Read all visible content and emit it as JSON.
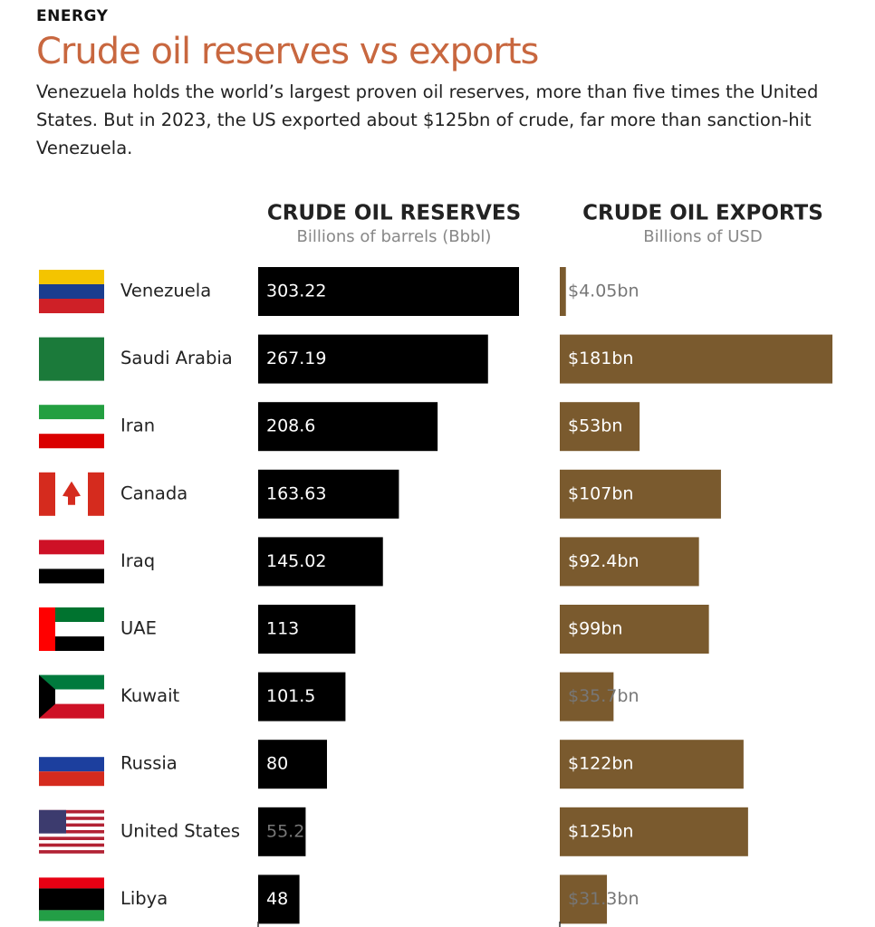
{
  "header": {
    "kicker": "ENERGY",
    "title": "Crude oil reserves vs exports",
    "subtitle": "Venezuela holds the world’s largest proven oil reserves, more than five times the United States. But in 2023, the US exported about $125bn of crude, far more than sanction-hit Venezuela."
  },
  "chart_data": {
    "type": "bar",
    "categories": [
      "Venezuela",
      "Saudi Arabia",
      "Iran",
      "Canada",
      "Iraq",
      "UAE",
      "Kuwait",
      "Russia",
      "United States",
      "Libya"
    ],
    "series": [
      {
        "name": "CRUDE OIL RESERVES",
        "unit": "Billions of barrels (Bbbl)",
        "color": "#000000",
        "values": [
          303.22,
          267.19,
          208.6,
          163.63,
          145.02,
          113,
          101.5,
          80,
          55.2,
          48
        ]
      },
      {
        "name": "CRUDE OIL EXPORTS",
        "unit": "Billions of USD",
        "color": "#7a5a2e",
        "values": [
          4.05,
          181,
          53,
          107,
          92.4,
          99,
          35.7,
          122,
          125,
          31.3
        ],
        "value_labels": [
          "$4.05bn",
          "$181bn",
          "$53bn",
          "$107bn",
          "$92.4bn",
          "$99bn",
          "$35.7bn",
          "$122bn",
          "$125bn",
          "$31.3bn"
        ]
      }
    ]
  }
}
